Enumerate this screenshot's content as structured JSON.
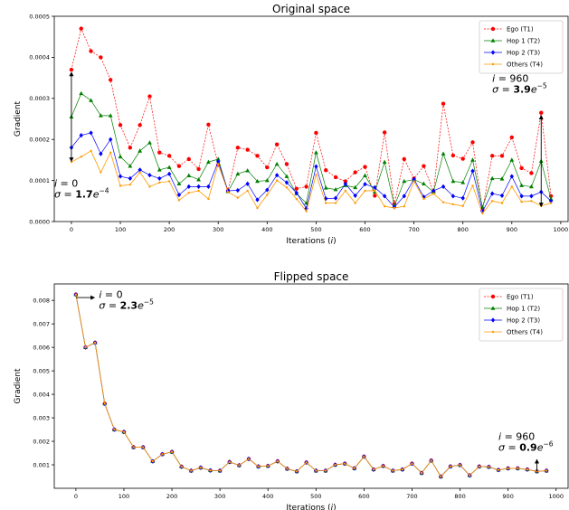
{
  "colors": {
    "ego": "#ff0000",
    "hop1": "#008000",
    "hop2": "#0000ff",
    "others": "#ff9900",
    "arrow": "#000000"
  },
  "chart_data": [
    {
      "type": "line",
      "title": "Original space",
      "xlabel": "Iterations (i)",
      "ylabel": "Gradient",
      "xlim": [
        -35,
        1015
      ],
      "ylim": [
        0,
        0.0005
      ],
      "xticks": [
        0,
        100,
        200,
        300,
        400,
        500,
        600,
        700,
        800,
        900,
        1000
      ],
      "xtick_labels": [
        "0",
        "100",
        "200",
        "300",
        "400",
        "500",
        "600",
        "700",
        "800",
        "900",
        "1000"
      ],
      "yticks": [
        0,
        0.0001,
        0.0002,
        0.0003,
        0.0004,
        0.0005
      ],
      "ytick_labels": [
        "0.0000",
        "0.0001",
        "0.0002",
        "0.0003",
        "0.0004",
        "0.0005"
      ],
      "legend_position": "top-right",
      "x": [
        0,
        20,
        40,
        60,
        80,
        100,
        120,
        140,
        160,
        180,
        200,
        220,
        240,
        260,
        280,
        300,
        320,
        340,
        360,
        380,
        400,
        420,
        440,
        460,
        480,
        500,
        520,
        540,
        560,
        580,
        600,
        620,
        640,
        660,
        680,
        700,
        720,
        740,
        760,
        780,
        800,
        820,
        840,
        860,
        880,
        900,
        920,
        940,
        960,
        980
      ],
      "series": [
        {
          "name": "Ego (T1)",
          "key": "ego",
          "marker": "circle",
          "values": [
            0.00037,
            0.00047,
            0.000415,
            0.0004,
            0.000345,
            0.000235,
            0.00018,
            0.000235,
            0.000305,
            0.000168,
            0.00016,
            0.000135,
            0.000152,
            0.000128,
            0.000236,
            0.000138,
            7.5e-05,
            0.00018,
            0.000175,
            0.00016,
            0.000132,
            0.000188,
            0.00014,
            8e-05,
            8.5e-05,
            0.000216,
            0.000125,
            0.000108,
            9.8e-05,
            0.00012,
            0.000133,
            6.3e-05,
            0.000217,
            4.3e-05,
            0.000152,
            0.000105,
            0.000135,
            7.2e-05,
            0.000287,
            0.000161,
            0.000153,
            0.000193,
            2.8e-05,
            0.00016,
            0.00016,
            0.000205,
            0.00013,
            0.000118,
            0.000265,
            6.2e-05
          ]
        },
        {
          "name": "Hop 1 (T2)",
          "key": "hop1",
          "marker": "triangle",
          "values": [
            0.000255,
            0.000312,
            0.000295,
            0.000258,
            0.000258,
            0.000158,
            0.000135,
            0.000172,
            0.000192,
            0.000126,
            0.000132,
            9.2e-05,
            0.000112,
            0.000102,
            0.000145,
            0.000152,
            7.3e-05,
            0.000116,
            0.000124,
            9.8e-05,
            0.0001,
            0.00014,
            0.00011,
            6.8e-05,
            4.5e-05,
            0.000168,
            8.2e-05,
            7.8e-05,
            8.8e-05,
            8.3e-05,
            0.000112,
            7.2e-05,
            0.000145,
            3.8e-05,
            9.8e-05,
            0.000102,
            9.2e-05,
            7.2e-05,
            0.000165,
            9.8e-05,
            9.5e-05,
            0.00015,
            3.5e-05,
            0.000105,
            0.000104,
            0.00015,
            8.8e-05,
            8.5e-05,
            0.000147,
            5.5e-05
          ]
        },
        {
          "name": "Hop 2 (T3)",
          "key": "hop2",
          "marker": "diamond",
          "values": [
            0.00018,
            0.00021,
            0.000216,
            0.000165,
            0.0002,
            0.00011,
            0.000105,
            0.000126,
            0.000113,
            0.000105,
            0.000116,
            6.5e-05,
            8.5e-05,
            8.5e-05,
            8.5e-05,
            0.000146,
            7.5e-05,
            7.6e-05,
            9.2e-05,
            5.3e-05,
            7.7e-05,
            0.000113,
            9.5e-05,
            7e-05,
            3.2e-05,
            0.000134,
            5.6e-05,
            5.7e-05,
            9.2e-05,
            6.3e-05,
            9.1e-05,
            8.3e-05,
            6.2e-05,
            3.5e-05,
            6.2e-05,
            0.000103,
            6e-05,
            7.5e-05,
            8.5e-05,
            6.2e-05,
            5.7e-05,
            0.000123,
            2.5e-05,
            6.8e-05,
            6.3e-05,
            0.00011,
            6.2e-05,
            6.2e-05,
            7.2e-05,
            5e-05
          ]
        },
        {
          "name": "Others (T4)",
          "key": "others",
          "marker": "dot",
          "values": [
            0.000145,
            0.000158,
            0.000172,
            0.00012,
            0.000168,
            8.7e-05,
            9e-05,
            0.00012,
            8.5e-05,
            9.5e-05,
            9.8e-05,
            5.2e-05,
            7e-05,
            7.5e-05,
            5.5e-05,
            0.00014,
            7.2e-05,
            5.8e-05,
            7.5e-05,
            3.3e-05,
            6.5e-05,
            0.0001,
            8.3e-05,
            5.5e-05,
            2.5e-05,
            0.000114,
            4.5e-05,
            4.5e-05,
            7.5e-05,
            4.5e-05,
            7.5e-05,
            7.5e-05,
            3.7e-05,
            3.3e-05,
            3.7e-05,
            9.8e-05,
            5.5e-05,
            6.8e-05,
            4.7e-05,
            4.2e-05,
            3.8e-05,
            8.7e-05,
            2e-05,
            5e-05,
            4.5e-05,
            8.5e-05,
            4.8e-05,
            5e-05,
            3.8e-05,
            4.5e-05
          ]
        }
      ],
      "annotations": [
        {
          "at_x": 0,
          "from_y": 0.000365,
          "to_y": 0.000145,
          "line1": "i = 0",
          "sigma_prefix": "σ = ",
          "mantissa": "1.7",
          "base": "e",
          "exponent": "−4",
          "anchor_x": -35,
          "anchor_y": 8.5e-05
        },
        {
          "at_x": 960,
          "from_y": 0.00026,
          "to_y": 3.5e-05,
          "line1": "i = 960",
          "sigma_prefix": "σ = ",
          "mantissa": "3.9",
          "base": "e",
          "exponent": "−5",
          "anchor_x": 860,
          "anchor_y": 0.00034
        }
      ]
    },
    {
      "type": "line",
      "title": "Flipped space",
      "xlabel": "Iterations (i)",
      "ylabel": "Gradient",
      "xlim": [
        -45,
        1025
      ],
      "ylim": [
        0,
        0.0087
      ],
      "xticks": [
        0,
        100,
        200,
        300,
        400,
        500,
        600,
        700,
        800,
        900,
        1000
      ],
      "xtick_labels": [
        "0",
        "100",
        "200",
        "300",
        "400",
        "500",
        "600",
        "700",
        "800",
        "900",
        "1000"
      ],
      "yticks": [
        0.001,
        0.002,
        0.003,
        0.004,
        0.005,
        0.006,
        0.007,
        0.008
      ],
      "ytick_labels": [
        "0.001",
        "0.002",
        "0.003",
        "0.004",
        "0.005",
        "0.006",
        "0.007",
        "0.008"
      ],
      "legend_position": "top-right",
      "x": [
        0,
        20,
        40,
        60,
        80,
        100,
        120,
        140,
        160,
        180,
        200,
        220,
        240,
        260,
        280,
        300,
        320,
        340,
        360,
        380,
        400,
        420,
        440,
        460,
        480,
        500,
        520,
        540,
        560,
        580,
        600,
        620,
        640,
        660,
        680,
        700,
        720,
        740,
        760,
        780,
        800,
        820,
        840,
        860,
        880,
        900,
        920,
        940,
        960,
        980
      ],
      "series": [
        {
          "name": "Ego (T1)",
          "key": "ego",
          "marker": "circle",
          "values": [
            0.00825,
            0.006,
            0.0062,
            0.0036,
            0.0025,
            0.0024,
            0.00175,
            0.00175,
            0.00115,
            0.00145,
            0.00155,
            0.00092,
            0.00075,
            0.00088,
            0.00076,
            0.00075,
            0.00112,
            0.00098,
            0.00125,
            0.00093,
            0.00095,
            0.00115,
            0.00083,
            0.00072,
            0.0011,
            0.00075,
            0.00075,
            0.001,
            0.00105,
            0.00085,
            0.00135,
            0.0008,
            0.00095,
            0.00075,
            0.0008,
            0.00105,
            0.00065,
            0.00118,
            0.0005,
            0.00093,
            0.00099,
            0.00055,
            0.00093,
            0.00091,
            0.00078,
            0.00085,
            0.00085,
            0.0008,
            0.00072,
            0.00075
          ]
        },
        {
          "name": "Hop 1 (T2)",
          "key": "hop1",
          "marker": "triangle",
          "values": [
            0.00825,
            0.006,
            0.0062,
            0.0036,
            0.0025,
            0.0024,
            0.00175,
            0.00175,
            0.00115,
            0.00145,
            0.00155,
            0.00092,
            0.00075,
            0.00088,
            0.00076,
            0.00075,
            0.00112,
            0.00098,
            0.00125,
            0.00093,
            0.00095,
            0.00115,
            0.00083,
            0.00072,
            0.0011,
            0.00075,
            0.00075,
            0.001,
            0.00105,
            0.00085,
            0.00135,
            0.0008,
            0.00095,
            0.00075,
            0.0008,
            0.00105,
            0.00065,
            0.00118,
            0.0005,
            0.00093,
            0.00099,
            0.00055,
            0.00093,
            0.00091,
            0.00078,
            0.00085,
            0.00085,
            0.0008,
            0.00072,
            0.00075
          ]
        },
        {
          "name": "Hop 2 (T3)",
          "key": "hop2",
          "marker": "diamond",
          "values": [
            0.00825,
            0.006,
            0.0062,
            0.0036,
            0.0025,
            0.0024,
            0.00175,
            0.00175,
            0.00115,
            0.00145,
            0.00155,
            0.00092,
            0.00075,
            0.00088,
            0.00076,
            0.00075,
            0.00112,
            0.00098,
            0.00125,
            0.00093,
            0.00095,
            0.00115,
            0.00083,
            0.00072,
            0.0011,
            0.00075,
            0.00075,
            0.001,
            0.00105,
            0.00085,
            0.00135,
            0.0008,
            0.00095,
            0.00075,
            0.0008,
            0.00105,
            0.00065,
            0.00118,
            0.0005,
            0.00093,
            0.00099,
            0.00055,
            0.00093,
            0.00091,
            0.00078,
            0.00085,
            0.00085,
            0.0008,
            0.00072,
            0.00075
          ]
        },
        {
          "name": "Others (T4)",
          "key": "others",
          "marker": "dot",
          "values": [
            0.00825,
            0.006,
            0.0062,
            0.0036,
            0.0025,
            0.0024,
            0.00175,
            0.00175,
            0.00115,
            0.00145,
            0.00155,
            0.00092,
            0.00075,
            0.00088,
            0.00076,
            0.00075,
            0.00112,
            0.00098,
            0.00125,
            0.00093,
            0.00095,
            0.00115,
            0.00083,
            0.00072,
            0.0011,
            0.00075,
            0.00075,
            0.001,
            0.00105,
            0.00085,
            0.00135,
            0.0008,
            0.00095,
            0.00075,
            0.0008,
            0.00105,
            0.00065,
            0.00118,
            0.0005,
            0.00093,
            0.00099,
            0.00055,
            0.00093,
            0.00091,
            0.00078,
            0.00085,
            0.00085,
            0.0008,
            0.00072,
            0.00075
          ]
        }
      ],
      "annotations": [
        {
          "at_x": 0,
          "arrow": "right",
          "from_x": 0,
          "to_x": 40,
          "at_y": 0.00812,
          "line1": "i = 0",
          "sigma_prefix": "σ = ",
          "mantissa": "2.3",
          "base": "e",
          "exponent": "−5",
          "anchor_x": 48,
          "anchor_y": 0.0081
        },
        {
          "at_x": 960,
          "arrow": "up",
          "from_y": 0.00072,
          "to_y": 0.00125,
          "line1": "i = 960",
          "sigma_prefix": "σ = ",
          "mantissa": "0.9",
          "base": "e",
          "exponent": "−6",
          "anchor_x": 880,
          "anchor_y": 0.00205
        }
      ]
    }
  ]
}
